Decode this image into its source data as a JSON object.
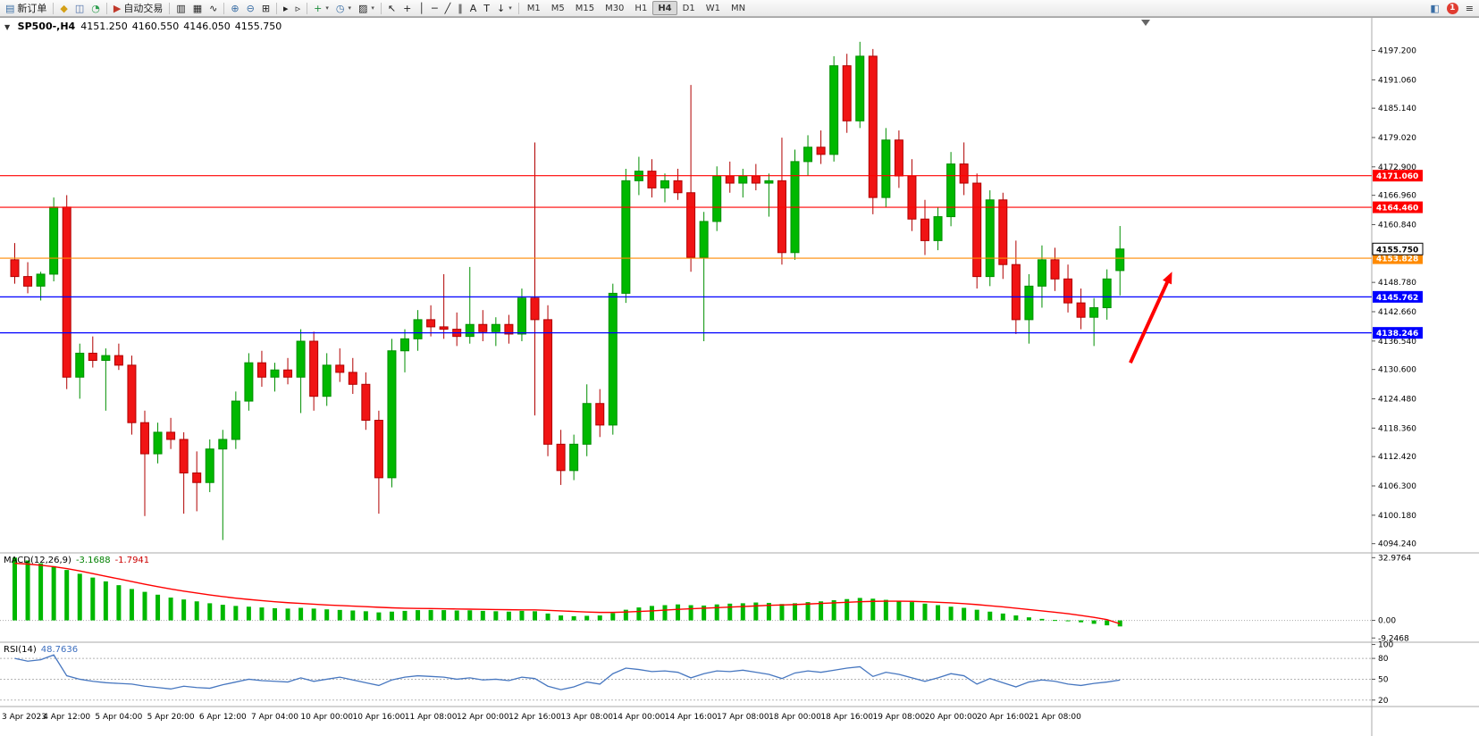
{
  "toolbar": {
    "groups": [
      {
        "name": "file",
        "items": [
          {
            "name": "new-order-button",
            "glyph": "▤",
            "glyph_color": "#3a6ea5",
            "label": "新订单"
          }
        ]
      },
      {
        "name": "account",
        "items": [
          {
            "name": "funds-icon",
            "glyph": "◆",
            "glyph_color": "#d4a017"
          },
          {
            "name": "profile-icon",
            "glyph": "◫",
            "glyph_color": "#4a6da7"
          },
          {
            "name": "market-icon",
            "glyph": "◔",
            "glyph_color": "#2e9e4f"
          }
        ]
      },
      {
        "name": "trading",
        "items": [
          {
            "name": "autotrading-button",
            "glyph": "▶",
            "glyph_color": "#c0392b",
            "label": "自动交易"
          }
        ]
      },
      {
        "name": "chart-type",
        "items": [
          {
            "name": "bar-chart-type-button",
            "glyph": "▥"
          },
          {
            "name": "candlestick-type-button",
            "glyph": "▦"
          },
          {
            "name": "line-chart-type-button",
            "glyph": "∿"
          }
        ]
      },
      {
        "name": "zoom",
        "items": [
          {
            "name": "zoom-in-button",
            "glyph": "⊕",
            "glyph_color": "#3a6ea5"
          },
          {
            "name": "zoom-out-button",
            "glyph": "⊖",
            "glyph_color": "#3a6ea5"
          },
          {
            "name": "tile-windows-button",
            "glyph": "⊞"
          }
        ]
      },
      {
        "name": "scroll",
        "items": [
          {
            "name": "auto-scroll-button",
            "glyph": "▸"
          },
          {
            "name": "chart-shift-button",
            "glyph": "▹"
          }
        ]
      },
      {
        "name": "insert",
        "items": [
          {
            "name": "indicators-button",
            "glyph": "+",
            "glyph_color": "#1e8e3e",
            "dropdown": true
          },
          {
            "name": "periods-button",
            "glyph": "◷",
            "glyph_color": "#3a6ea5",
            "dropdown": true
          },
          {
            "name": "templates-button",
            "glyph": "▨",
            "dropdown": true
          }
        ]
      },
      {
        "name": "objects",
        "items": [
          {
            "name": "cursor-button",
            "glyph": "↖"
          },
          {
            "name": "crosshair-button",
            "glyph": "+"
          },
          {
            "name": "vertical-line-button",
            "glyph": "│"
          },
          {
            "name": "horizontal-line-button",
            "glyph": "─"
          },
          {
            "name": "trendline-button",
            "glyph": "╱"
          },
          {
            "name": "channel-button",
            "glyph": "∥"
          },
          {
            "name": "text-button",
            "glyph": "A"
          },
          {
            "name": "label-button",
            "glyph": "T"
          },
          {
            "name": "arrows-button",
            "glyph": "↓",
            "dropdown": true
          }
        ]
      }
    ],
    "timeframes": {
      "items": [
        "M1",
        "M5",
        "M15",
        "M30",
        "H1",
        "H4",
        "D1",
        "W1",
        "MN"
      ],
      "active": "H4"
    },
    "right": [
      {
        "name": "community-icon",
        "glyph": "◧",
        "glyph_color": "#3a6ea5"
      },
      {
        "name": "notifications-badge",
        "label": "1",
        "color": "#e03c31"
      },
      {
        "name": "menu-icon",
        "glyph": "≡",
        "glyph_color": "#333333"
      }
    ]
  },
  "chart": {
    "title": {
      "symbol": "SP500-,H4",
      "open": "4151.250",
      "high": "4160.550",
      "low": "4146.050",
      "close": "4155.750"
    },
    "indicators": {
      "macd_label": "MACD(12,26,9)",
      "macd_value": "-3.1688",
      "macd_signal": "-1.7941",
      "rsi_label": "RSI(14)",
      "rsi_value": "48.7636"
    }
  },
  "chart_data": {
    "type": "candlestick",
    "symbol": "SP500-",
    "timeframe": "H4",
    "price_range": [
      4092.5,
      4204.0
    ],
    "colors": {
      "up": "#00b800",
      "up_border": "#008f00",
      "down": "#f01414",
      "down_border": "#b00000"
    },
    "candles": [
      [
        4153.5,
        4157,
        4148.5,
        4150
      ],
      [
        4150,
        4153,
        4146.5,
        4148
      ],
      [
        4148,
        4151,
        4145,
        4150.5
      ],
      [
        4150.5,
        4166.5,
        4149,
        4164.5
      ],
      [
        4164.5,
        4167,
        4126.5,
        4129
      ],
      [
        4129,
        4136,
        4124.5,
        4134
      ],
      [
        4134,
        4137.5,
        4131,
        4132.5
      ],
      [
        4132.5,
        4135,
        4122,
        4133.5
      ],
      [
        4133.5,
        4136,
        4130.5,
        4131.5
      ],
      [
        4131.5,
        4133.5,
        4117,
        4119.5
      ],
      [
        4119.5,
        4122,
        4100,
        4113
      ],
      [
        4113,
        4119.5,
        4111,
        4117.5
      ],
      [
        4117.5,
        4120.5,
        4114,
        4116
      ],
      [
        4116,
        4117.5,
        4100.5,
        4109
      ],
      [
        4109,
        4113.5,
        4101,
        4107
      ],
      [
        4107,
        4116,
        4105,
        4114
      ],
      [
        4114,
        4118,
        4095,
        4116
      ],
      [
        4116,
        4126,
        4114,
        4124
      ],
      [
        4124,
        4134,
        4122,
        4132
      ],
      [
        4132,
        4134.5,
        4127,
        4129
      ],
      [
        4129,
        4132,
        4126,
        4130.5
      ],
      [
        4130.5,
        4133,
        4127.5,
        4129
      ],
      [
        4129,
        4139,
        4121.5,
        4136.5
      ],
      [
        4136.5,
        4138.5,
        4122,
        4125
      ],
      [
        4125,
        4134,
        4123,
        4131.5
      ],
      [
        4131.5,
        4135,
        4128,
        4130
      ],
      [
        4130,
        4133,
        4125.5,
        4127.5
      ],
      [
        4127.5,
        4130,
        4118,
        4120
      ],
      [
        4120,
        4122,
        4100.5,
        4108
      ],
      [
        4108,
        4137,
        4106,
        4134.5
      ],
      [
        4134.5,
        4139,
        4130,
        4137
      ],
      [
        4137,
        4143,
        4134.5,
        4141
      ],
      [
        4141,
        4144,
        4137.5,
        4139.5
      ],
      [
        4139.5,
        4150.5,
        4137,
        4139
      ],
      [
        4139,
        4142.5,
        4135.5,
        4137.5
      ],
      [
        4137.5,
        4152,
        4136,
        4140
      ],
      [
        4140,
        4143,
        4136.5,
        4138.5
      ],
      [
        4138.5,
        4141.5,
        4135.5,
        4140
      ],
      [
        4140,
        4142,
        4136,
        4138
      ],
      [
        4138,
        4147.5,
        4136.5,
        4145.5
      ],
      [
        4145.5,
        4178,
        4121,
        4141
      ],
      [
        4141,
        4144,
        4112.5,
        4115
      ],
      [
        4115,
        4118,
        4106.5,
        4109.5
      ],
      [
        4109.5,
        4117,
        4107.5,
        4115
      ],
      [
        4115,
        4127.5,
        4112.5,
        4123.5
      ],
      [
        4123.5,
        4126.5,
        4116.5,
        4119
      ],
      [
        4119,
        4148.5,
        4117,
        4146.5
      ],
      [
        4146.5,
        4172.5,
        4144.5,
        4170
      ],
      [
        4170,
        4175,
        4167,
        4172
      ],
      [
        4172,
        4174.5,
        4166.5,
        4168.5
      ],
      [
        4168.5,
        4171.5,
        4165.5,
        4170
      ],
      [
        4170,
        4172.5,
        4166,
        4167.5
      ],
      [
        4167.5,
        4190,
        4151,
        4154
      ],
      [
        4154,
        4163.5,
        4136.5,
        4161.5
      ],
      [
        4161.5,
        4173,
        4159.5,
        4171
      ],
      [
        4171,
        4174,
        4167.5,
        4169.5
      ],
      [
        4169.5,
        4172.5,
        4166.5,
        4171
      ],
      [
        4171,
        4173.5,
        4168,
        4169.5
      ],
      [
        4169.5,
        4171.5,
        4162.5,
        4170
      ],
      [
        4170,
        4179,
        4152.5,
        4155
      ],
      [
        4155,
        4176.5,
        4153.5,
        4174
      ],
      [
        4174,
        4179.5,
        4171,
        4177
      ],
      [
        4177,
        4180.5,
        4173.5,
        4175.5
      ],
      [
        4175.5,
        4196,
        4174,
        4194
      ],
      [
        4194,
        4196.5,
        4180,
        4182.5
      ],
      [
        4182.5,
        4199,
        4181,
        4196
      ],
      [
        4196,
        4197.5,
        4163,
        4166.5
      ],
      [
        4166.5,
        4181,
        4164.5,
        4178.5
      ],
      [
        4178.5,
        4180.5,
        4168.5,
        4171
      ],
      [
        4171,
        4174.5,
        4159.5,
        4162
      ],
      [
        4162,
        4166,
        4154.5,
        4157.5
      ],
      [
        4157.5,
        4164.5,
        4155.5,
        4162.5
      ],
      [
        4162.5,
        4176,
        4160.5,
        4173.5
      ],
      [
        4173.5,
        4178,
        4167,
        4169.5
      ],
      [
        4169.5,
        4171.5,
        4147.5,
        4150
      ],
      [
        4150,
        4168,
        4148,
        4166
      ],
      [
        4166,
        4167.5,
        4149.5,
        4152.5
      ],
      [
        4152.5,
        4157.5,
        4138,
        4141
      ],
      [
        4141,
        4150.5,
        4136,
        4148
      ],
      [
        4148,
        4156.5,
        4143.5,
        4153.5
      ],
      [
        4153.5,
        4156,
        4147,
        4149.5
      ],
      [
        4149.5,
        4152.5,
        4142.5,
        4144.5
      ],
      [
        4144.5,
        4147.5,
        4139,
        4141.5
      ],
      [
        4141.5,
        4145.5,
        4135.5,
        4143.5
      ],
      [
        4143.5,
        4151.5,
        4141,
        4149.5
      ],
      [
        4151.25,
        4160.55,
        4146.05,
        4155.75
      ]
    ],
    "time_labels": [
      "3 Apr 2023",
      "4 Apr 12:00",
      "5 Apr 04:00",
      "5 Apr 20:00",
      "6 Apr 12:00",
      "7 Apr 04:00",
      "10 Apr 00:00",
      "10 Apr 16:00",
      "11 Apr 08:00",
      "12 Apr 00:00",
      "12 Apr 16:00",
      "13 Apr 08:00",
      "14 Apr 00:00",
      "14 Apr 16:00",
      "17 Apr 08:00",
      "18 Apr 00:00",
      "18 Apr 16:00",
      "19 Apr 08:00",
      "20 Apr 00:00",
      "20 Apr 16:00",
      "21 Apr 08:00"
    ],
    "label_every": 4,
    "price_axis": {
      "ticks": [
        "4197.200",
        "4191.060",
        "4185.140",
        "4179.020",
        "4172.900",
        "4166.960",
        "4160.840",
        "4154.900",
        "4148.780",
        "4142.660",
        "4136.540",
        "4130.600",
        "4124.480",
        "4118.360",
        "4112.420",
        "4106.300",
        "4100.180",
        "4094.240"
      ]
    },
    "hlines": [
      {
        "price": 4171.06,
        "color": "#ff0000",
        "label": "4171.060"
      },
      {
        "price": 4164.46,
        "color": "#ff0000",
        "label": "4164.460"
      },
      {
        "price": 4153.828,
        "color": "#ff8a00",
        "label": "4153.828"
      },
      {
        "price": 4145.762,
        "color": "#0000ff",
        "label": "4145.762"
      },
      {
        "price": 4138.246,
        "color": "#0000ff",
        "label": "4138.246"
      }
    ],
    "current_price": {
      "price": 4155.75,
      "label": "4155.750"
    },
    "annotations": [
      {
        "type": "arrow",
        "from_bar": 85.8,
        "from_price": 4132,
        "to_bar": 89.0,
        "to_price": 4151,
        "color": "#ff0000"
      }
    ],
    "macd": {
      "range": [
        -11,
        35
      ],
      "axis": [
        "32.9764",
        "0.00",
        "-9.2468"
      ],
      "colors": {
        "histogram": "#00b800",
        "signal": "#ff0000"
      },
      "histogram": [
        33,
        31.5,
        30,
        28.5,
        26.5,
        24.5,
        22.5,
        20.5,
        18.5,
        16.5,
        15,
        13.5,
        12,
        11,
        10,
        9,
        8.2,
        7.6,
        7.2,
        6.8,
        6.4,
        6.2,
        6.6,
        6.2,
        5.8,
        5.5,
        5.2,
        4.8,
        4.2,
        4.6,
        5,
        5.4,
        5.5,
        5.4,
        5.2,
        5.3,
        5,
        4.8,
        4.6,
        5,
        4.8,
        3.6,
        2.6,
        2.2,
        2.4,
        2.6,
        3.8,
        5.6,
        6.8,
        7.6,
        8,
        8.4,
        8,
        7.8,
        8.4,
        8.8,
        9,
        9.4,
        9.2,
        8.6,
        9,
        9.6,
        10,
        10.6,
        11.2,
        11.8,
        11.4,
        10.8,
        10.2,
        9.6,
        8.8,
        8,
        7.2,
        6.6,
        5.6,
        4.6,
        3.6,
        2.6,
        1.6,
        0.8,
        0.2,
        -0.4,
        -1,
        -1.8,
        -2.6,
        -3.17
      ],
      "signal": [
        30,
        29.6,
        29,
        28.2,
        27.2,
        26,
        24.6,
        23.2,
        21.8,
        20.4,
        19,
        17.7,
        16.5,
        15.4,
        14.4,
        13.4,
        12.5,
        11.7,
        11,
        10.4,
        9.8,
        9.3,
        8.9,
        8.5,
        8.1,
        7.8,
        7.5,
        7.2,
        6.9,
        6.6,
        6.4,
        6.3,
        6.2,
        6.1,
        6,
        5.9,
        5.8,
        5.7,
        5.6,
        5.5,
        5.5,
        5.3,
        5,
        4.7,
        4.4,
        4.2,
        4.2,
        4.4,
        4.7,
        5,
        5.4,
        5.8,
        6.1,
        6.4,
        6.7,
        7,
        7.3,
        7.6,
        7.9,
        8.1,
        8.3,
        8.6,
        8.9,
        9.2,
        9.5,
        9.8,
        10,
        10.1,
        10.1,
        10,
        9.8,
        9.5,
        9.2,
        8.8,
        8.3,
        7.7,
        7.1,
        6.4,
        5.7,
        5,
        4.3,
        3.5,
        2.6,
        1.6,
        0.4,
        -1.79
      ]
    },
    "rsi": {
      "range": [
        12,
        102
      ],
      "levels": [
        80,
        50,
        20
      ],
      "axis_labels": [
        "100",
        "80",
        "50",
        "20"
      ],
      "color": "#4777c0",
      "values": [
        80,
        76,
        78,
        85,
        55,
        50,
        47,
        45,
        44,
        43,
        40,
        38,
        36,
        40,
        38,
        37,
        42,
        46,
        50,
        48,
        47,
        46,
        52,
        47,
        50,
        53,
        49,
        45,
        41,
        49,
        53,
        55,
        54,
        53,
        50,
        52,
        49,
        50,
        48,
        53,
        51,
        40,
        35,
        39,
        46,
        43,
        58,
        66,
        64,
        61,
        62,
        60,
        52,
        58,
        62,
        61,
        63,
        60,
        57,
        51,
        59,
        62,
        60,
        63,
        66,
        68,
        54,
        60,
        57,
        52,
        47,
        52,
        58,
        55,
        43,
        51,
        45,
        39,
        46,
        49,
        47,
        43,
        41,
        44,
        46,
        48.8
      ]
    }
  }
}
